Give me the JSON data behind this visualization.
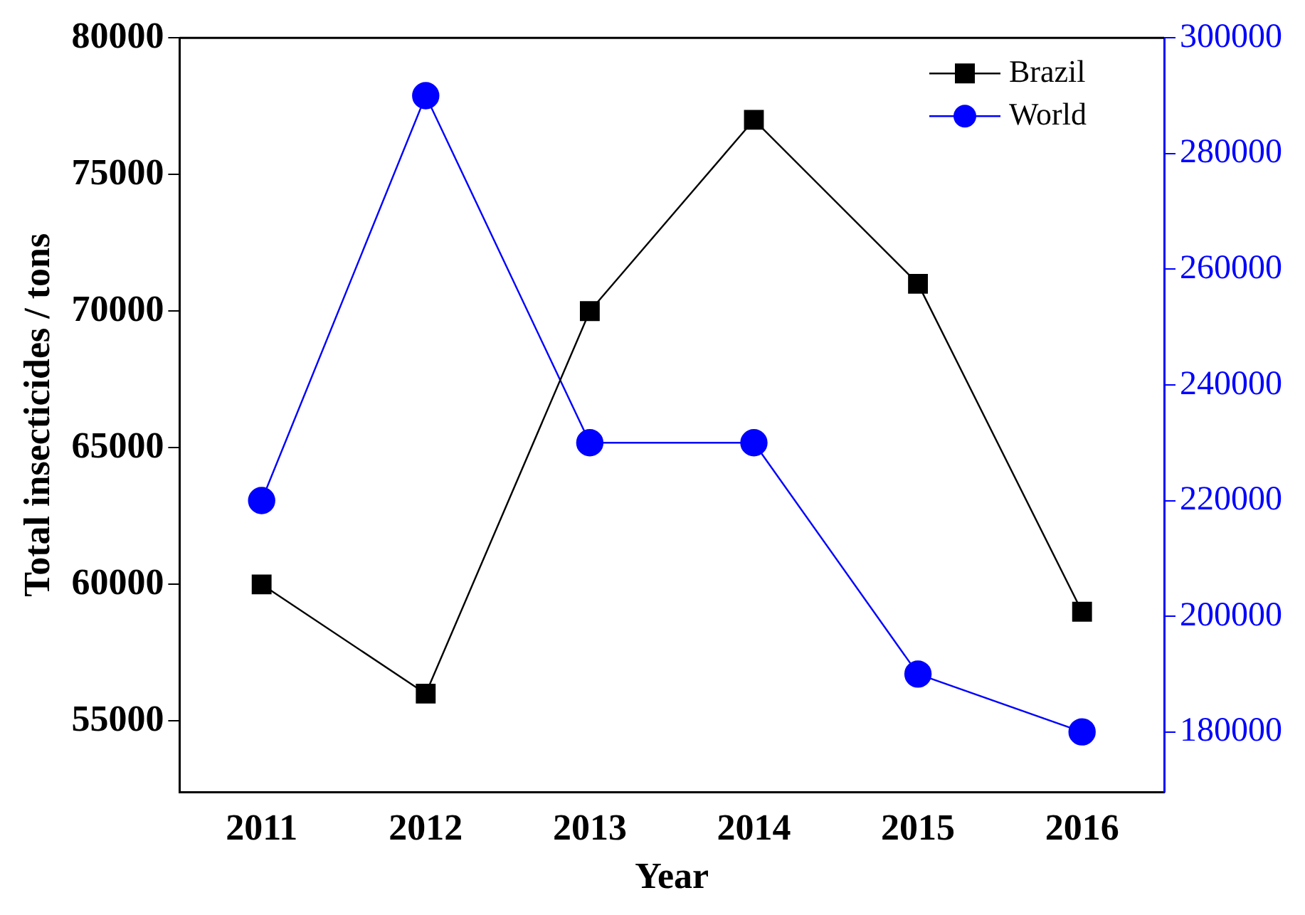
{
  "chart_data": {
    "type": "line",
    "xlabel": "Year",
    "ylabel": "Total insecticides / tons",
    "x": [
      2011,
      2012,
      2013,
      2014,
      2015,
      2016
    ],
    "series": [
      {
        "name": "Brazil",
        "color": "#000000",
        "marker": "square",
        "values": [
          60000,
          56000,
          70000,
          77000,
          71000,
          59000
        ]
      },
      {
        "name": "World",
        "color": "#0000ff",
        "marker": "circle",
        "axis": "y2",
        "values": [
          220000,
          290000,
          230000,
          230000,
          190000,
          180000
        ]
      }
    ],
    "xlim": [
      2010.5,
      2016.5
    ],
    "xticks": [
      2011,
      2012,
      2013,
      2014,
      2015,
      2016
    ],
    "ylim": [
      52400,
      80000
    ],
    "yticks": [
      55000,
      60000,
      65000,
      70000,
      75000,
      80000
    ],
    "y2lim": [
      169600,
      300000
    ],
    "y2ticks": [
      180000,
      200000,
      220000,
      240000,
      260000,
      280000,
      300000
    ],
    "legend": "top right",
    "grid": false
  }
}
